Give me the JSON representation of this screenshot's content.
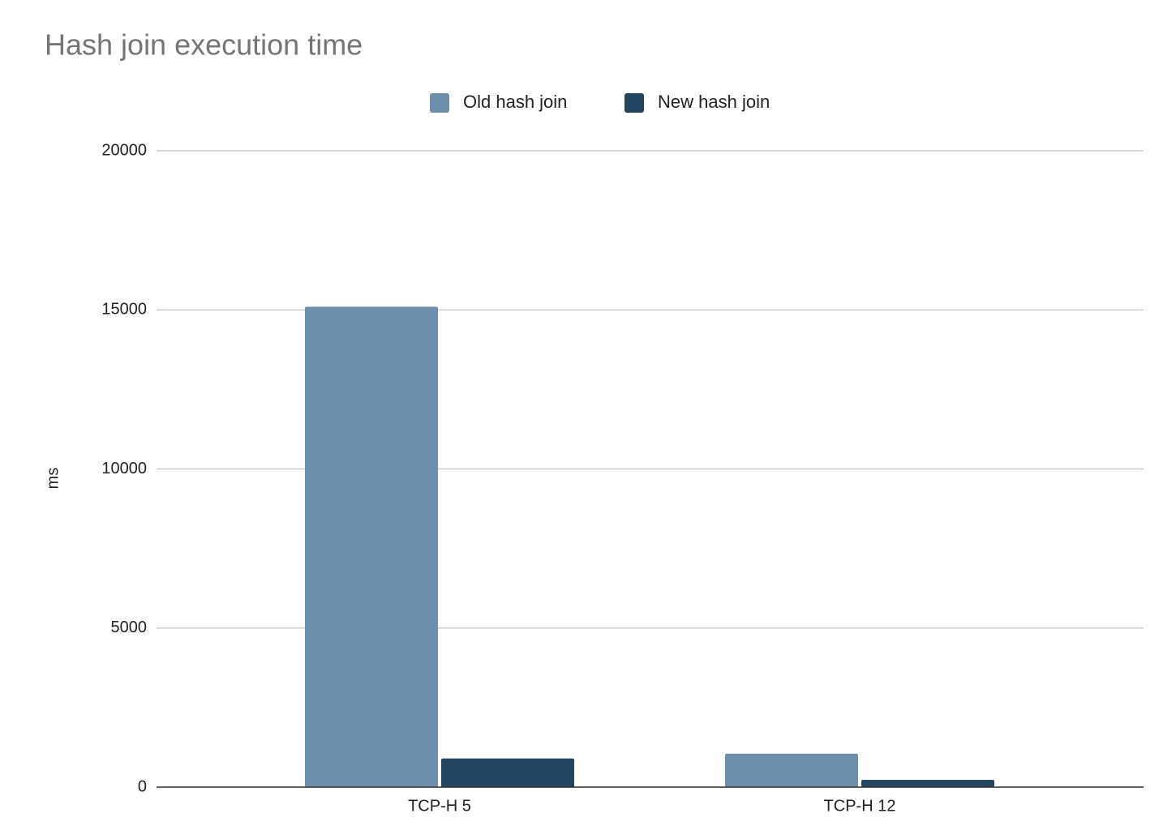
{
  "chart_data": {
    "type": "bar",
    "title": "Hash join execution time",
    "y_label": "ms",
    "categories": [
      "TCP-H 5",
      "TCP-H 12"
    ],
    "series": [
      {
        "name": "Old hash join",
        "color": "#6d8fab",
        "values": [
          15100,
          1050
        ]
      },
      {
        "name": "New hash join",
        "color": "#244560",
        "values": [
          900,
          230
        ]
      }
    ],
    "ylim": [
      0,
      20000
    ],
    "yticks": [
      0,
      5000,
      10000,
      15000,
      20000
    ],
    "grid": true,
    "legend": "top"
  }
}
